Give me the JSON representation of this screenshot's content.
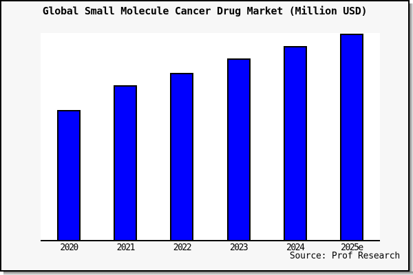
{
  "chart_data": {
    "type": "bar",
    "title": "Global Small Molecule Cancer Drug Market (Million USD)",
    "unit": "Million USD",
    "categories": [
      "2020",
      "2021",
      "2022",
      "2023",
      "2024",
      "2025e"
    ],
    "values_percent_of_max": [
      63,
      75,
      81,
      88,
      94,
      100
    ],
    "value_note": "no numeric y-axis shown in image; values are relative bar heights as percent of tallest bar (2025e = 100)",
    "xlabel": "",
    "ylabel": "",
    "y_axis_visible": false,
    "gridlines": false,
    "legend": "none",
    "source_label": "Source: Prof Research",
    "colors": {
      "bar_fill": "#0000ff",
      "bar_border": "#000000",
      "plot_background": "#ffffff",
      "canvas_background": "#f7f7f7",
      "frame_border": "#000000",
      "text": "#000000"
    }
  }
}
